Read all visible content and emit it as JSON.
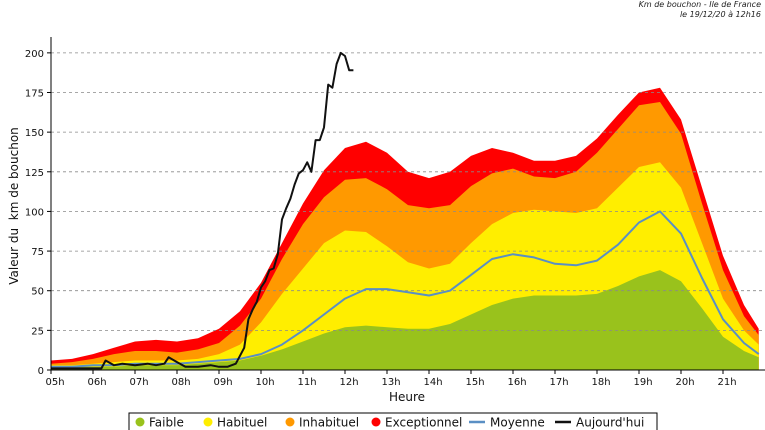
{
  "header": {
    "line1": "Km de bouchon - Ile de France",
    "line2": "le 19/12/20 à 12h16"
  },
  "chart_data": {
    "type": "area",
    "title": "",
    "xlabel": "Heure",
    "ylabel": "Valeur du  km de bouchon",
    "xlim": [
      5,
      22
    ],
    "ylim": [
      0,
      210
    ],
    "yticks": [
      0,
      25,
      50,
      75,
      100,
      125,
      150,
      175,
      200
    ],
    "xticks": [
      5,
      6,
      7,
      8,
      9,
      10,
      11,
      12,
      13,
      14,
      15,
      16,
      17,
      18,
      19,
      20,
      21
    ],
    "xtick_labels": [
      "05h",
      "06h",
      "07h",
      "08h",
      "09h",
      "10h",
      "11h",
      "12h",
      "13h",
      "14h",
      "15h",
      "16h",
      "17h",
      "18h",
      "19h",
      "20h",
      "21h"
    ],
    "grid": "horizontal-dashed",
    "legend_position": "bottom",
    "x": [
      5.0,
      5.5,
      6.0,
      6.5,
      7.0,
      7.5,
      8.0,
      8.5,
      9.0,
      9.5,
      10.0,
      10.5,
      11.0,
      11.5,
      12.0,
      12.5,
      13.0,
      13.5,
      14.0,
      14.5,
      15.0,
      15.5,
      16.0,
      16.5,
      17.0,
      17.5,
      18.0,
      18.5,
      19.0,
      19.5,
      20.0,
      20.5,
      21.0,
      21.5,
      21.85
    ],
    "bands": [
      {
        "name": "Faible",
        "color": "#99c21c",
        "values": [
          2,
          2,
          2,
          2,
          3,
          3,
          3,
          4,
          5,
          6,
          9,
          13,
          18,
          23,
          27,
          28,
          27,
          26,
          26,
          29,
          35,
          41,
          45,
          47,
          47,
          47,
          48,
          53,
          59,
          63,
          56,
          39,
          21,
          12,
          8
        ]
      },
      {
        "name": "Habituel",
        "color": "#ffee00",
        "values": [
          3,
          3,
          4,
          5,
          6,
          6,
          6,
          7,
          10,
          16,
          30,
          48,
          64,
          80,
          88,
          87,
          78,
          68,
          64,
          67,
          80,
          92,
          99,
          101,
          100,
          99,
          102,
          115,
          128,
          131,
          115,
          80,
          45,
          25,
          16
        ]
      },
      {
        "name": "Inhabituel",
        "color": "#ff9900",
        "values": [
          4,
          5,
          7,
          10,
          12,
          12,
          11,
          13,
          17,
          28,
          45,
          70,
          92,
          109,
          120,
          121,
          114,
          104,
          102,
          104,
          116,
          124,
          127,
          122,
          121,
          125,
          137,
          152,
          167,
          169,
          149,
          105,
          63,
          34,
          22
        ]
      },
      {
        "name": "Exceptionnel",
        "color": "#ff0000",
        "values": [
          6,
          7,
          10,
          14,
          18,
          19,
          18,
          20,
          26,
          37,
          55,
          80,
          105,
          126,
          140,
          144,
          137,
          125,
          121,
          125,
          135,
          140,
          137,
          132,
          132,
          135,
          146,
          161,
          175,
          178,
          158,
          115,
          72,
          41,
          26
        ]
      }
    ],
    "series": [
      {
        "name": "Moyenne",
        "color": "#5a8fc4",
        "x": [
          5.0,
          5.5,
          6.0,
          6.5,
          7.0,
          7.5,
          8.0,
          8.5,
          9.0,
          9.5,
          10.0,
          10.5,
          11.0,
          11.5,
          12.0,
          12.5,
          13.0,
          13.5,
          14.0,
          14.5,
          15.0,
          15.5,
          16.0,
          16.5,
          17.0,
          17.5,
          18.0,
          18.5,
          19.0,
          19.5,
          20.0,
          20.5,
          21.0,
          21.5,
          21.85
        ],
        "values": [
          2,
          2,
          3,
          3,
          4,
          4,
          4,
          5,
          6,
          7,
          10,
          16,
          25,
          35,
          45,
          51,
          51,
          49,
          47,
          50,
          60,
          70,
          73,
          71,
          67,
          66,
          69,
          79,
          93,
          100,
          86,
          58,
          32,
          17,
          10
        ]
      },
      {
        "name": "Aujourd'hui",
        "color": "#111111",
        "x": [
          5.0,
          5.5,
          6.0,
          6.2,
          6.3,
          6.5,
          6.7,
          7.0,
          7.3,
          7.5,
          7.7,
          7.8,
          8.0,
          8.2,
          8.5,
          8.8,
          9.0,
          9.2,
          9.4,
          9.6,
          9.7,
          9.8,
          9.9,
          10.0,
          10.1,
          10.2,
          10.3,
          10.4,
          10.5,
          10.6,
          10.7,
          10.8,
          10.9,
          11.0,
          11.1,
          11.2,
          11.3,
          11.4,
          11.5,
          11.6,
          11.7,
          11.8,
          11.9,
          12.0,
          12.1,
          12.2
        ],
        "values": [
          1,
          1,
          1,
          1,
          6,
          3,
          4,
          3,
          4,
          3,
          4,
          8,
          5,
          2,
          2,
          3,
          2,
          2,
          4,
          14,
          32,
          38,
          43,
          52,
          56,
          63,
          64,
          73,
          95,
          102,
          108,
          117,
          124,
          126,
          131,
          125,
          145,
          145,
          153,
          180,
          178,
          193,
          200,
          198,
          189,
          189
        ]
      }
    ]
  }
}
